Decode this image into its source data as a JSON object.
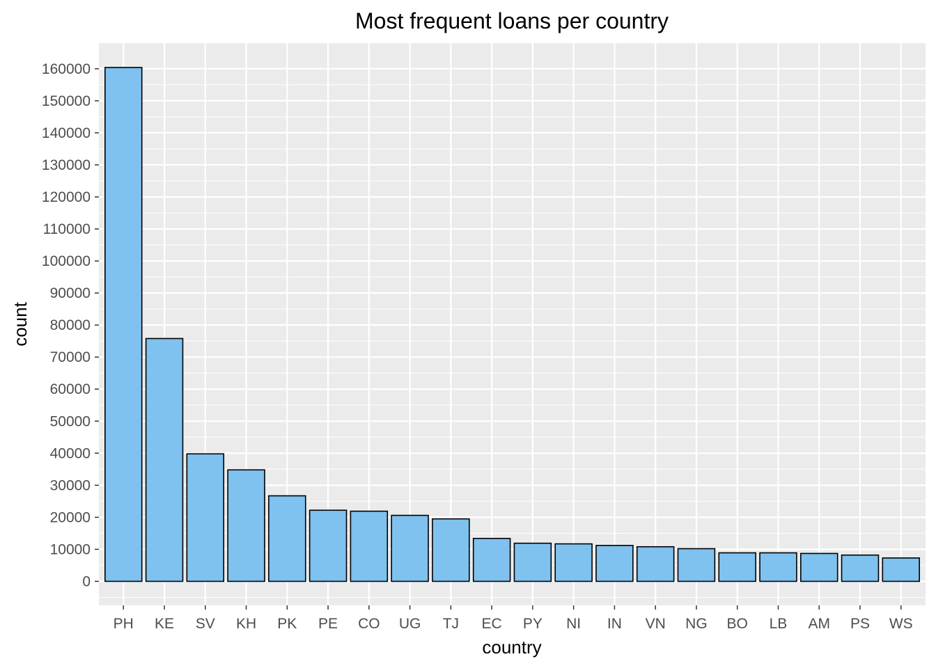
{
  "chart_data": {
    "type": "bar",
    "title": "Most frequent loans per country",
    "xlabel": "country",
    "ylabel": "count",
    "categories": [
      "PH",
      "KE",
      "SV",
      "KH",
      "PK",
      "PE",
      "CO",
      "UG",
      "TJ",
      "EC",
      "PY",
      "NI",
      "IN",
      "VN",
      "NG",
      "BO",
      "LB",
      "AM",
      "PS",
      "WS"
    ],
    "values": [
      160400,
      75800,
      39800,
      34800,
      26700,
      22200,
      21900,
      20600,
      19500,
      13400,
      11900,
      11700,
      11200,
      10800,
      10200,
      8900,
      8900,
      8700,
      8200,
      7300
    ],
    "ylim": [
      -7500,
      168000
    ],
    "yticks": [
      0,
      10000,
      20000,
      30000,
      40000,
      50000,
      60000,
      70000,
      80000,
      90000,
      100000,
      110000,
      120000,
      130000,
      140000,
      150000,
      160000
    ],
    "ytick_labels": [
      "0",
      "10000",
      "20000",
      "30000",
      "40000",
      "50000",
      "60000",
      "70000",
      "80000",
      "90000",
      "100000",
      "110000",
      "120000",
      "130000",
      "140000",
      "150000",
      "160000"
    ],
    "grid": true,
    "legend": "none",
    "colors": {
      "bar_fill": "#7fc1ef",
      "bar_stroke": "#000000",
      "panel_background": "#ebebeb",
      "grid": "#ffffff"
    }
  }
}
